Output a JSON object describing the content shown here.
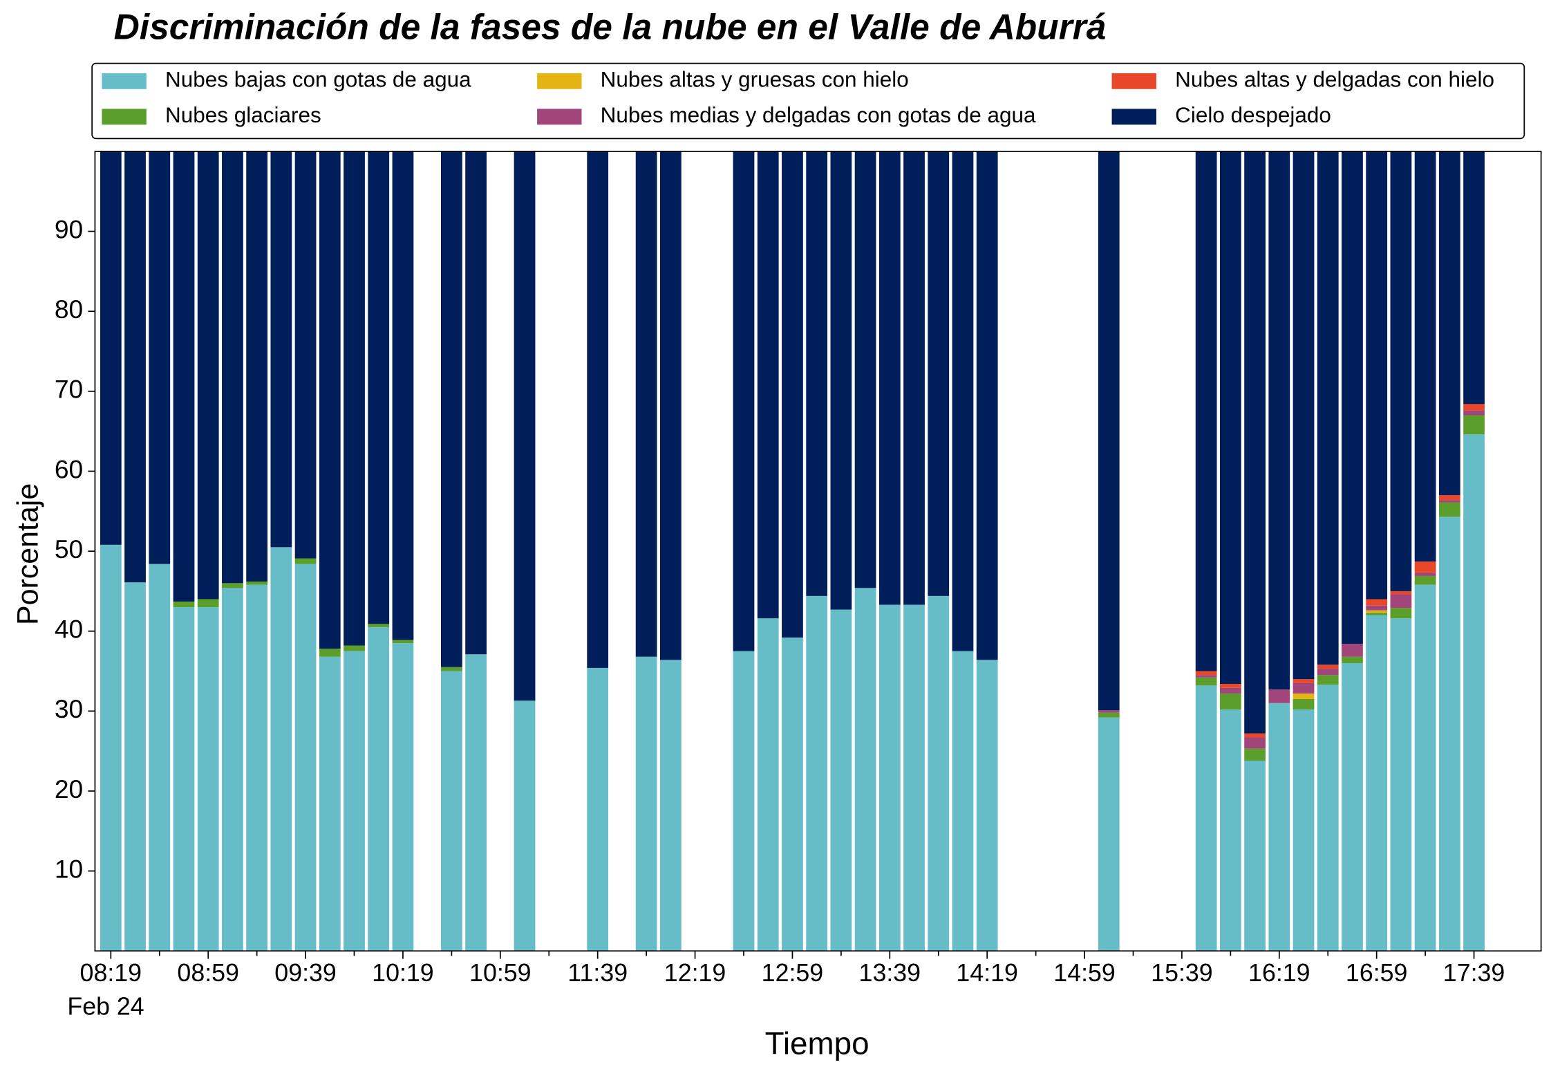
{
  "chart_data": {
    "type": "stacked_bar",
    "title": "Discriminación de la fases de la nube en el Valle de Aburrá",
    "x_label": "Tiempo",
    "y_label": "Porcentaje",
    "x_sublabel": "Feb 24",
    "categories": [
      "08:19",
      null,
      null,
      null,
      "08:59",
      null,
      null,
      null,
      "09:39",
      null,
      null,
      null,
      "10:19",
      null,
      null,
      null,
      "10:59",
      null,
      null,
      null,
      "11:39",
      null,
      null,
      null,
      "12:19",
      null,
      null,
      null,
      "12:59",
      null,
      null,
      null,
      "13:39",
      null,
      null,
      null,
      "14:19",
      null,
      null,
      null,
      "14:59",
      null,
      null,
      null,
      "15:39",
      null,
      null,
      null,
      "16:19",
      null,
      null,
      null,
      "16:59",
      null,
      null,
      null,
      "17:39"
    ],
    "ylim": [
      0,
      100
    ],
    "yticks": [
      10,
      20,
      30,
      40,
      50,
      60,
      70,
      80,
      90
    ],
    "legend": "top",
    "series": [
      {
        "name": "Nubes bajas con gotas de agua",
        "color": "#66bdc8",
        "values": [
          50.8,
          46.1,
          48.4,
          43,
          43,
          45.4,
          45.8,
          50.5,
          48.4,
          36.8,
          37.5,
          40.5,
          38.5,
          null,
          35,
          37.1,
          null,
          31.3,
          null,
          null,
          35.4,
          null,
          36.8,
          36.4,
          null,
          null,
          37.5,
          41.6,
          39.2,
          44.4,
          42.7,
          45.4,
          43.3,
          43.3,
          44.4,
          37.5,
          36.4,
          null,
          null,
          null,
          null,
          29.2,
          null,
          null,
          null,
          33.2,
          30.2,
          23.8,
          31,
          30.2,
          33.3,
          36,
          42,
          41.6,
          45.8,
          54.3,
          64.6
        ]
      },
      {
        "name": "Nubes glaciares",
        "color": "#5b9e2c",
        "values": [
          0,
          0,
          0,
          0.7,
          1,
          0.6,
          0.4,
          0,
          0.7,
          1,
          0.7,
          0.4,
          0.4,
          null,
          0.5,
          0,
          null,
          0,
          null,
          null,
          0,
          null,
          0,
          0,
          null,
          null,
          0,
          0,
          0,
          0,
          0,
          0,
          0,
          0,
          0,
          0,
          0,
          null,
          null,
          null,
          null,
          0.6,
          null,
          null,
          null,
          1,
          2,
          1.5,
          0,
          1.3,
          1.2,
          0.8,
          0.3,
          1.3,
          1.1,
          1.8,
          2.4
        ]
      },
      {
        "name": "Nubes altas y gruesas con hielo",
        "color": "#e4b414",
        "values": [
          0,
          0,
          0,
          0,
          0,
          0,
          0,
          0,
          0,
          0,
          0,
          0,
          0,
          null,
          0,
          0,
          null,
          0,
          null,
          null,
          0,
          null,
          0,
          0,
          null,
          null,
          0,
          0,
          0,
          0,
          0,
          0,
          0,
          0,
          0,
          0,
          0,
          null,
          null,
          null,
          null,
          0,
          null,
          null,
          null,
          0,
          0,
          0,
          0,
          0.7,
          0,
          0,
          0.3,
          0,
          0,
          0,
          0
        ]
      },
      {
        "name": "Nubes medias y delgadas con gotas de agua",
        "color": "#a2457a",
        "values": [
          0,
          0,
          0,
          0,
          0,
          0,
          0,
          0,
          0,
          0,
          0,
          0,
          0,
          null,
          0,
          0,
          null,
          0,
          null,
          null,
          0,
          null,
          0,
          0,
          null,
          null,
          0,
          0,
          0,
          0,
          0,
          0,
          0,
          0,
          0,
          0,
          0,
          null,
          null,
          null,
          null,
          0.3,
          null,
          null,
          null,
          0.3,
          0.7,
          1.4,
          1.7,
          1.3,
          0.8,
          1.6,
          0.6,
          1.7,
          0.4,
          0.3,
          0.6
        ]
      },
      {
        "name": "Nubes altas y delgadas con hielo",
        "color": "#e8472a",
        "values": [
          0,
          0,
          0,
          0,
          0,
          0,
          0,
          0,
          0,
          0,
          0,
          0,
          0,
          null,
          0,
          0,
          null,
          0,
          null,
          null,
          0,
          null,
          0,
          0,
          null,
          null,
          0,
          0,
          0,
          0,
          0,
          0,
          0,
          0,
          0,
          0,
          0,
          null,
          null,
          null,
          null,
          0,
          null,
          null,
          null,
          0.5,
          0.5,
          0.5,
          0,
          0.5,
          0.5,
          0,
          0.8,
          0.4,
          1.4,
          0.6,
          0.8
        ]
      },
      {
        "name": "Cielo despejado",
        "color": "#001e5a",
        "values": [
          49.2,
          53.9,
          51.6,
          56.3,
          56,
          54,
          53.8,
          49.5,
          50.9,
          62.2,
          61.8,
          59.1,
          61.1,
          null,
          64.5,
          62.9,
          null,
          68.7,
          null,
          null,
          64.6,
          null,
          63.2,
          63.6,
          null,
          null,
          62.5,
          58.4,
          60.8,
          55.6,
          57.3,
          54.6,
          56.7,
          56.7,
          55.6,
          62.5,
          63.6,
          null,
          null,
          null,
          null,
          69.9,
          null,
          null,
          null,
          65,
          66.6,
          72.8,
          67.3,
          66,
          64.2,
          61.6,
          56,
          55,
          51.3,
          43,
          31.6
        ]
      }
    ]
  }
}
